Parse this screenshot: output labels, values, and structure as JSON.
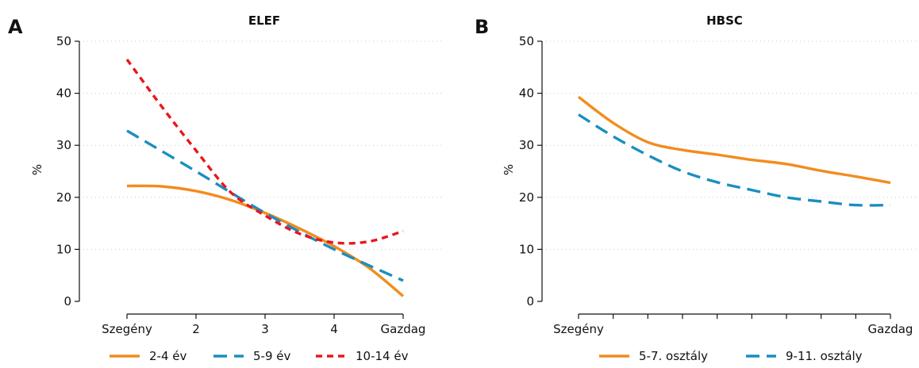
{
  "chart_data": [
    {
      "type": "line",
      "panel_label": "A",
      "title": "ELEF",
      "ylabel": "%",
      "xlabel": "",
      "x_ticks": [
        {
          "x": 1,
          "label": "Szegény"
        },
        {
          "x": 2,
          "label": "2"
        },
        {
          "x": 3,
          "label": "3"
        },
        {
          "x": 4,
          "label": "4"
        },
        {
          "x": 5,
          "label": "Gazdag"
        }
      ],
      "xlim": [
        1,
        5
      ],
      "y_ticks": [
        "0",
        "10",
        "20",
        "30",
        "40",
        "50"
      ],
      "ylim": [
        0,
        50
      ],
      "grid": "horizontal dotted",
      "legend_position": "bottom",
      "series": [
        {
          "name": "2-4 év",
          "color": "#f28c1e",
          "dash": "solid",
          "x": [
            1,
            1.5,
            2,
            2.5,
            3,
            3.5,
            4,
            4.5,
            5
          ],
          "values": [
            22.2,
            22.1,
            21.2,
            19.5,
            17.0,
            14.0,
            10.6,
            6.5,
            1.0
          ]
        },
        {
          "name": "5-9 év",
          "color": "#1a8fbf",
          "dash": "long",
          "x": [
            1,
            2,
            3,
            4,
            5
          ],
          "values": [
            32.8,
            25.0,
            17.0,
            10.0,
            4.0
          ]
        },
        {
          "name": "10-14 év",
          "color": "#e8171e",
          "dash": "short",
          "x": [
            1,
            1.5,
            2,
            2.5,
            3,
            3.5,
            4,
            4.5,
            5
          ],
          "values": [
            46.5,
            37.5,
            29.0,
            21.0,
            16.5,
            13.0,
            11.3,
            11.5,
            13.5
          ]
        }
      ]
    },
    {
      "type": "line",
      "panel_label": "B",
      "title": "HBSC",
      "ylabel": "%",
      "xlabel": "",
      "x_ticks": [
        {
          "x": 1,
          "label": "Szegény"
        },
        {
          "x": 2,
          "label": ""
        },
        {
          "x": 3,
          "label": ""
        },
        {
          "x": 4,
          "label": ""
        },
        {
          "x": 5,
          "label": ""
        },
        {
          "x": 6,
          "label": ""
        },
        {
          "x": 7,
          "label": ""
        },
        {
          "x": 8,
          "label": ""
        },
        {
          "x": 9,
          "label": ""
        },
        {
          "x": 10,
          "label": "Gazdag"
        }
      ],
      "xlim": [
        1,
        10
      ],
      "y_ticks": [
        "0",
        "10",
        "20",
        "30",
        "40",
        "50"
      ],
      "ylim": [
        0,
        50
      ],
      "grid": "horizontal dotted",
      "legend_position": "bottom",
      "series": [
        {
          "name": "5-7. osztály",
          "color": "#f28c1e",
          "dash": "solid",
          "x": [
            1,
            2,
            3,
            4,
            5,
            6,
            7,
            8,
            9,
            10
          ],
          "values": [
            39.3,
            34.3,
            30.6,
            29.1,
            28.2,
            27.2,
            26.4,
            25.1,
            24.0,
            22.8
          ]
        },
        {
          "name": "9-11. osztály",
          "color": "#1a8fbf",
          "dash": "long",
          "x": [
            1,
            2,
            3,
            4,
            5,
            6,
            7,
            8,
            9,
            10
          ],
          "values": [
            35.9,
            31.7,
            28.1,
            25.0,
            22.9,
            21.4,
            20.0,
            19.2,
            18.5,
            18.5
          ]
        }
      ]
    }
  ]
}
